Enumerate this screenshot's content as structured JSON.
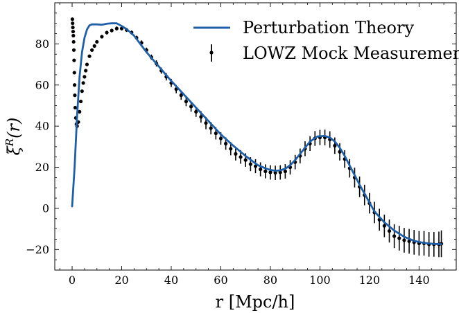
{
  "chart_data": {
    "type": "line",
    "title": "",
    "xlabel": "r [Mpc/h]",
    "ylabel": "ξR(r)",
    "xlim": [
      -7,
      155
    ],
    "ylim": [
      -30,
      100
    ],
    "xticks": [
      0,
      20,
      40,
      60,
      80,
      100,
      120,
      140
    ],
    "yticks": [
      -20,
      0,
      20,
      40,
      60,
      80
    ],
    "grid": false,
    "legend_placement": "top-right",
    "colors": {
      "theory": "#1f5fa8",
      "mock": "#000000"
    },
    "series": [
      {
        "name": "Perturbation Theory",
        "kind": "line",
        "x": [
          0,
          1,
          2,
          3,
          4,
          5,
          6,
          7,
          8,
          9,
          10,
          12,
          14,
          16,
          18,
          20,
          22,
          25,
          30,
          35,
          40,
          45,
          50,
          55,
          60,
          65,
          70,
          75,
          78,
          80,
          82,
          84,
          86,
          88,
          90,
          93,
          96,
          99,
          102,
          104,
          106,
          108,
          110,
          113,
          116,
          119,
          122,
          126,
          130,
          134,
          138,
          142,
          146,
          149
        ],
        "y": [
          1,
          20,
          45,
          64,
          76,
          83,
          87,
          89,
          89.5,
          89.5,
          89.5,
          89.3,
          89.8,
          90,
          90,
          88.7,
          87.2,
          84,
          76,
          69,
          62,
          55.5,
          49,
          42.5,
          36,
          30.5,
          25.5,
          21,
          19.5,
          18.7,
          18.3,
          18.5,
          19.3,
          21,
          23.5,
          28,
          32.5,
          35,
          35.2,
          34.5,
          32.5,
          29.5,
          25.5,
          18.5,
          11.5,
          5,
          -1.5,
          -6.8,
          -10.8,
          -13.8,
          -15.8,
          -16.8,
          -17.3,
          -17.4
        ]
      },
      {
        "name": "LOWZ Mock Measurement",
        "kind": "errorbar",
        "x": [
          0.1,
          0.2,
          0.3,
          0.4,
          0.5,
          0.6,
          0.7,
          0.8,
          0.9,
          1.0,
          1.1,
          1.25,
          1.5,
          1.75,
          2,
          2.5,
          3,
          3.5,
          4,
          4.5,
          5,
          5.5,
          6,
          7,
          8,
          9,
          10,
          12,
          14,
          16,
          18,
          20,
          22,
          24,
          26,
          28,
          30,
          32,
          34,
          36,
          38,
          40,
          42,
          44,
          46,
          48,
          50,
          52,
          54,
          56,
          58,
          60,
          62,
          64,
          66,
          68,
          70,
          72,
          74,
          76,
          78,
          80,
          82,
          84,
          86,
          88,
          90,
          92,
          94,
          96,
          98,
          100,
          102,
          104,
          106,
          108,
          110,
          112,
          114,
          116,
          118,
          120,
          122,
          124,
          126,
          128,
          130,
          132,
          134,
          136,
          138,
          140,
          142,
          144,
          146,
          148,
          149
        ],
        "y": [
          92,
          90,
          88,
          86,
          84,
          81,
          77,
          72,
          66,
          60,
          55,
          49,
          44,
          41,
          40,
          42,
          47,
          52,
          57,
          61,
          64,
          67,
          70,
          74,
          77,
          79,
          81,
          83.5,
          85.5,
          86.5,
          87.5,
          87.5,
          86.8,
          85.5,
          83,
          80.5,
          77,
          73.5,
          70.5,
          67,
          64,
          61,
          58,
          55,
          52,
          49.5,
          47,
          44.5,
          41.5,
          39,
          36.5,
          34,
          31.5,
          29,
          26.5,
          25,
          23.5,
          21.5,
          20.5,
          19,
          18,
          17.5,
          17.3,
          17.5,
          18,
          20,
          22.5,
          25.5,
          29,
          31.5,
          34,
          34.5,
          34.5,
          33.5,
          30.5,
          27.5,
          24,
          19.5,
          15,
          10.5,
          6.5,
          2.5,
          -2,
          -5.5,
          -8.5,
          -11,
          -13.5,
          -14.5,
          -15.5,
          -16,
          -16.5,
          -17,
          -17,
          -17.5,
          -17.5,
          -17.5,
          -17.2
        ],
        "yerr": [
          0.4,
          0.4,
          0.4,
          0.4,
          0.4,
          0.4,
          0.4,
          0.4,
          0.4,
          0.4,
          0.4,
          0.4,
          0.5,
          0.5,
          0.5,
          0.6,
          0.6,
          0.7,
          0.7,
          0.8,
          0.8,
          0.8,
          0.8,
          0.8,
          0.8,
          0.8,
          0.8,
          0.8,
          0.9,
          0.9,
          1,
          1,
          1,
          1,
          1,
          1.2,
          1.2,
          1.3,
          1.5,
          1.5,
          1.8,
          2,
          2,
          2.2,
          2.3,
          2.5,
          2.5,
          2.8,
          3,
          3,
          3,
          3,
          3,
          3.2,
          3.2,
          3.3,
          3.3,
          3.4,
          3.4,
          3.4,
          3.4,
          3.5,
          3.5,
          3.5,
          3.5,
          3.5,
          3.5,
          3.6,
          3.6,
          3.6,
          3.6,
          3.7,
          3.8,
          4,
          4,
          4.2,
          4.3,
          4.5,
          4.8,
          5,
          5,
          5,
          5.2,
          5.3,
          5.5,
          5.6,
          5.8,
          6,
          6,
          6,
          6,
          6,
          6,
          6,
          6,
          6.2,
          6.5
        ]
      }
    ]
  }
}
